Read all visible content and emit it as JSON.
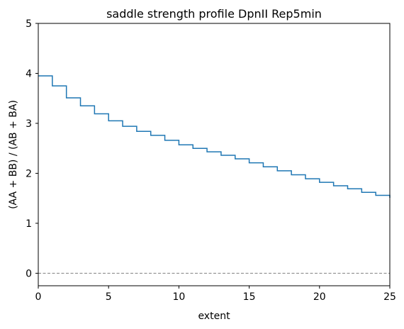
{
  "chart_data": {
    "type": "line",
    "drawstyle": "steps-post",
    "title": "saddle strength profile DpnII Rep5min",
    "xlabel": "extent",
    "ylabel": "(AA + BB) / (AB + BA)",
    "xlim": [
      0,
      25
    ],
    "ylim": [
      -0.25,
      5
    ],
    "xticks": [
      0,
      5,
      10,
      15,
      20,
      25
    ],
    "yticks": [
      0,
      1,
      2,
      3,
      4,
      5
    ],
    "grid": false,
    "series": [
      {
        "color": "#1f77b4",
        "x": [
          0,
          1,
          2,
          3,
          4,
          5,
          6,
          7,
          8,
          9,
          10,
          11,
          12,
          13,
          14,
          15,
          16,
          17,
          18,
          19,
          20,
          21,
          22,
          23,
          24,
          25
        ],
        "y": [
          3.95,
          3.75,
          3.51,
          3.35,
          3.19,
          3.05,
          2.94,
          2.84,
          2.76,
          2.66,
          2.57,
          2.5,
          2.43,
          2.36,
          2.29,
          2.21,
          2.13,
          2.05,
          1.97,
          1.89,
          1.82,
          1.75,
          1.69,
          1.62,
          1.56,
          1.51
        ]
      }
    ],
    "reference_lines": [
      {
        "orientation": "horizontal",
        "y": 0,
        "style": "dashed",
        "color": "#808080"
      }
    ]
  }
}
